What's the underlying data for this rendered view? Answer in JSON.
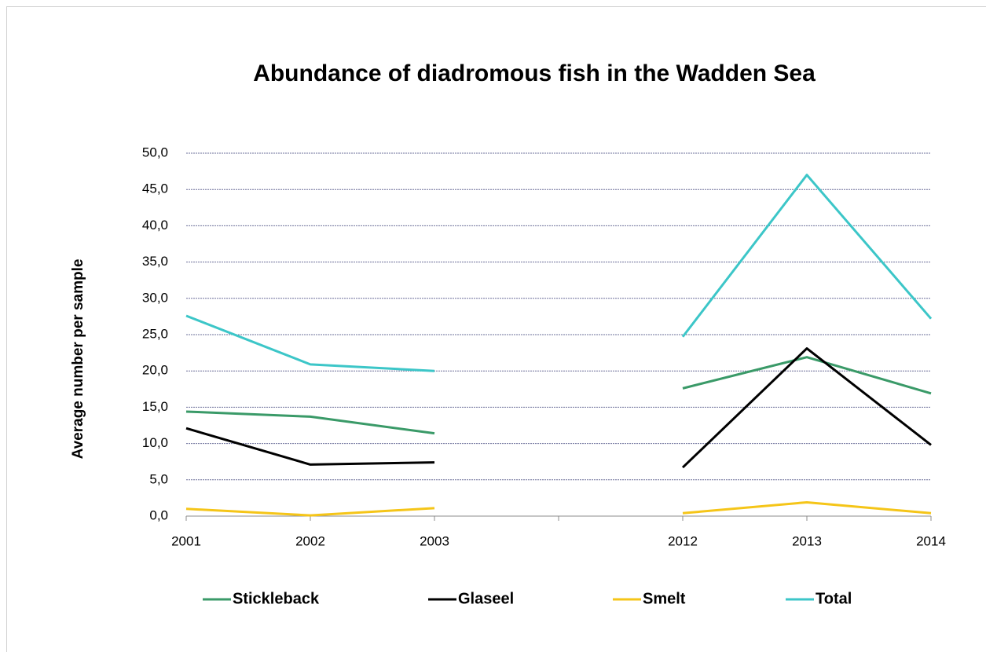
{
  "chart_data": {
    "type": "line",
    "title": "Abundance of diadromous fish in the Wadden Sea",
    "y_label": "Average number per sample",
    "categories": [
      "2001",
      "2002",
      "2003",
      null,
      "2012",
      "2013",
      "2014"
    ],
    "series": [
      {
        "name": "Stickleback",
        "color": "#3a9a68",
        "values": [
          14.4,
          13.7,
          11.4,
          null,
          17.6,
          21.9,
          16.9
        ]
      },
      {
        "name": "Glaseel",
        "color": "#000000",
        "values": [
          12.1,
          7.1,
          7.4,
          null,
          6.7,
          23.1,
          9.8
        ]
      },
      {
        "name": "Smelt",
        "color": "#f5c518",
        "values": [
          1.0,
          0.1,
          1.1,
          null,
          0.4,
          1.9,
          0.4
        ]
      },
      {
        "name": "Total",
        "color": "#3cc6c8",
        "values": [
          27.6,
          20.9,
          20.0,
          null,
          24.7,
          47.0,
          27.2
        ]
      }
    ],
    "ylim": [
      0,
      50
    ],
    "yticks": [
      {
        "value": 0,
        "label": "0,0"
      },
      {
        "value": 5,
        "label": "5,0"
      },
      {
        "value": 10,
        "label": "10,0"
      },
      {
        "value": 15,
        "label": "15,0"
      },
      {
        "value": 20,
        "label": "20,0"
      },
      {
        "value": 25,
        "label": "25,0"
      },
      {
        "value": 30,
        "label": "30,0"
      },
      {
        "value": 35,
        "label": "35,0"
      },
      {
        "value": 40,
        "label": "40,0"
      },
      {
        "value": 45,
        "label": "45,0"
      },
      {
        "value": 50,
        "label": "50,0"
      }
    ],
    "grid": true,
    "legend": "bottom"
  }
}
